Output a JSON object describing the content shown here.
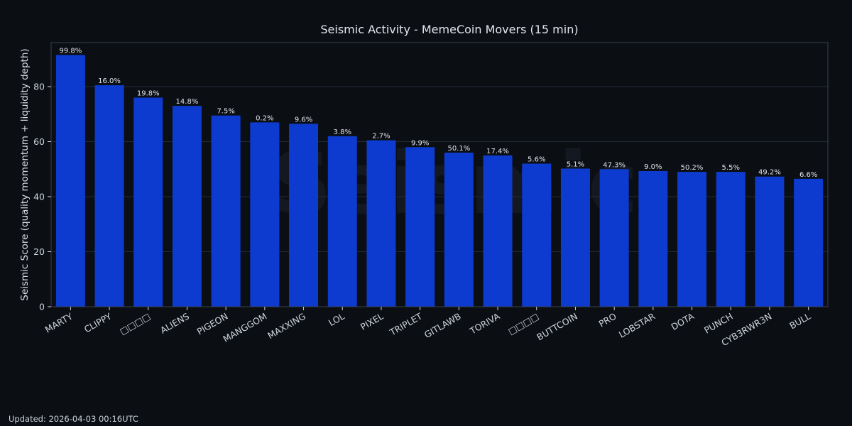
{
  "footer": {
    "updated_label": "Updated:",
    "updated_value": "2026-04-03 00:16UTC"
  },
  "colors": {
    "bar": "#0d3bd0",
    "background": "#0b0e13",
    "grid": "#232a38",
    "axis": "#3a4252"
  },
  "chart_data": {
    "type": "bar",
    "title": "Seismic Activity - MemeCoin Movers (15 min)",
    "xlabel": "",
    "ylabel": "Seismic Score (quality momentum + liquidity depth)",
    "watermark": "Seismic",
    "ylim": [
      0,
      96
    ],
    "yticks": [
      0,
      20,
      40,
      60,
      80
    ],
    "grid": true,
    "categories": [
      "MARTY",
      "CLIPPY",
      "□□□□",
      "ALIENS",
      "PIGEON",
      "MANGGOM",
      "MAXXING",
      "LOL",
      "PIXEL",
      "TRIPLET",
      "GITLAWB",
      "TORIVA",
      "□□□□",
      "BUTTCOIN",
      "PRO",
      "LOBSTAR",
      "DOTA",
      "PUNCH",
      "CYB3RWR3N",
      "BULL"
    ],
    "values": [
      91.5,
      80.5,
      76,
      73,
      69.5,
      67,
      66.5,
      62,
      60.5,
      58,
      56,
      55,
      52,
      50.2,
      50,
      49.3,
      49,
      49,
      47.3,
      46.5
    ],
    "labels": [
      "99.8%",
      "16.0%",
      "19.8%",
      "14.8%",
      "7.5%",
      "0.2%",
      "9.6%",
      "3.8%",
      "2.7%",
      "9.9%",
      "50.1%",
      "17.4%",
      "5.6%",
      "5.1%",
      "47.3%",
      "9.0%",
      "50.2%",
      "5.5%",
      "49.2%",
      "6.6%"
    ]
  }
}
